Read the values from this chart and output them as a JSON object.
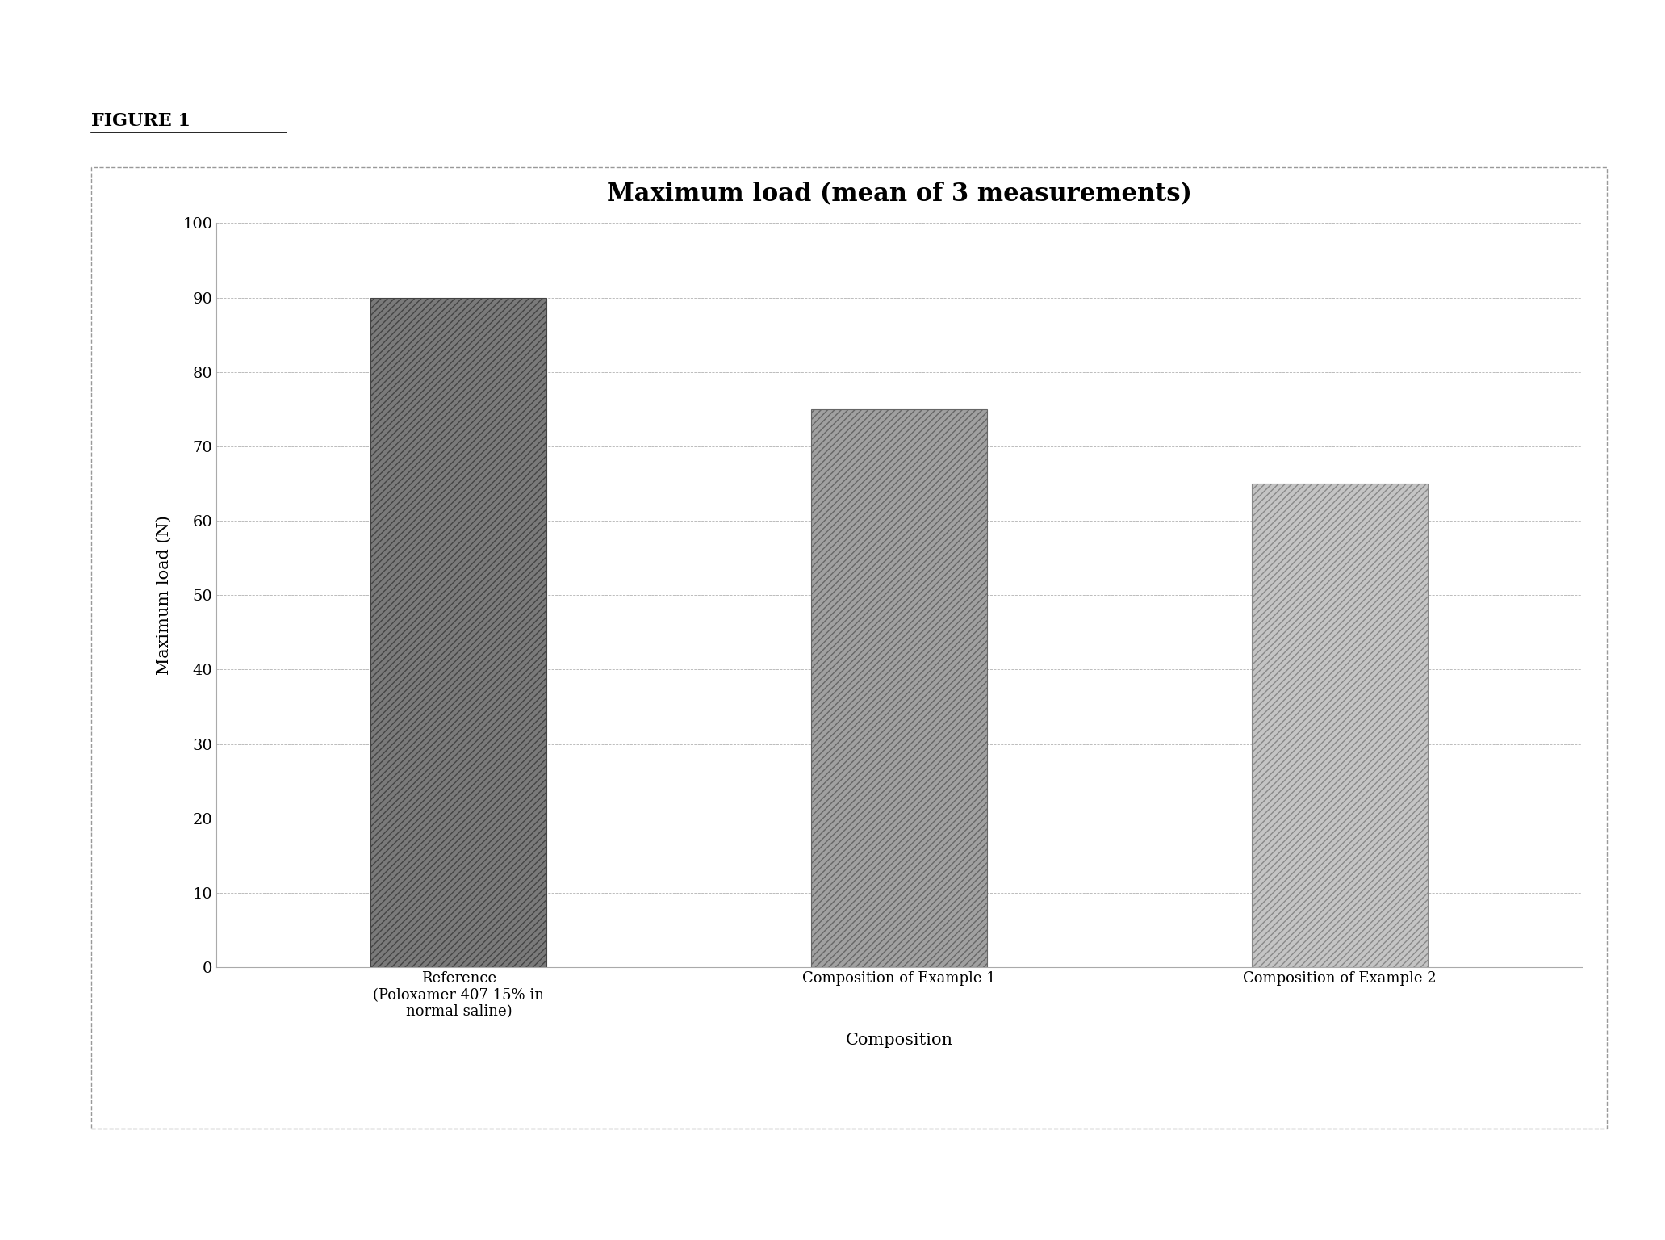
{
  "title": "Maximum load (mean of 3 measurements)",
  "xlabel": "Composition",
  "ylabel": "Maximum load (N)",
  "categories": [
    "Reference\n(Poloxamer 407 15% in\nnormal saline)",
    "Composition of Example 1",
    "Composition of Example 2"
  ],
  "values": [
    90,
    75,
    65
  ],
  "ylim": [
    0,
    100
  ],
  "yticks": [
    0,
    10,
    20,
    30,
    40,
    50,
    60,
    70,
    80,
    90,
    100
  ],
  "title_fontsize": 22,
  "axis_label_fontsize": 15,
  "tick_fontsize": 14,
  "figure_label": "FIGURE 1",
  "background_color": "#ffffff",
  "bar_face_colors": [
    "#7a7a7a",
    "#a0a0a0",
    "#c4c4c4"
  ],
  "bar_edge_colors": [
    "#444444",
    "#666666",
    "#888888"
  ],
  "bar_hatches": [
    "////",
    "////",
    "////"
  ],
  "grid_color": "#aaaaaa",
  "grid_linestyle": "--",
  "box_edge_color": "#999999",
  "figure_label_fontsize": 16
}
